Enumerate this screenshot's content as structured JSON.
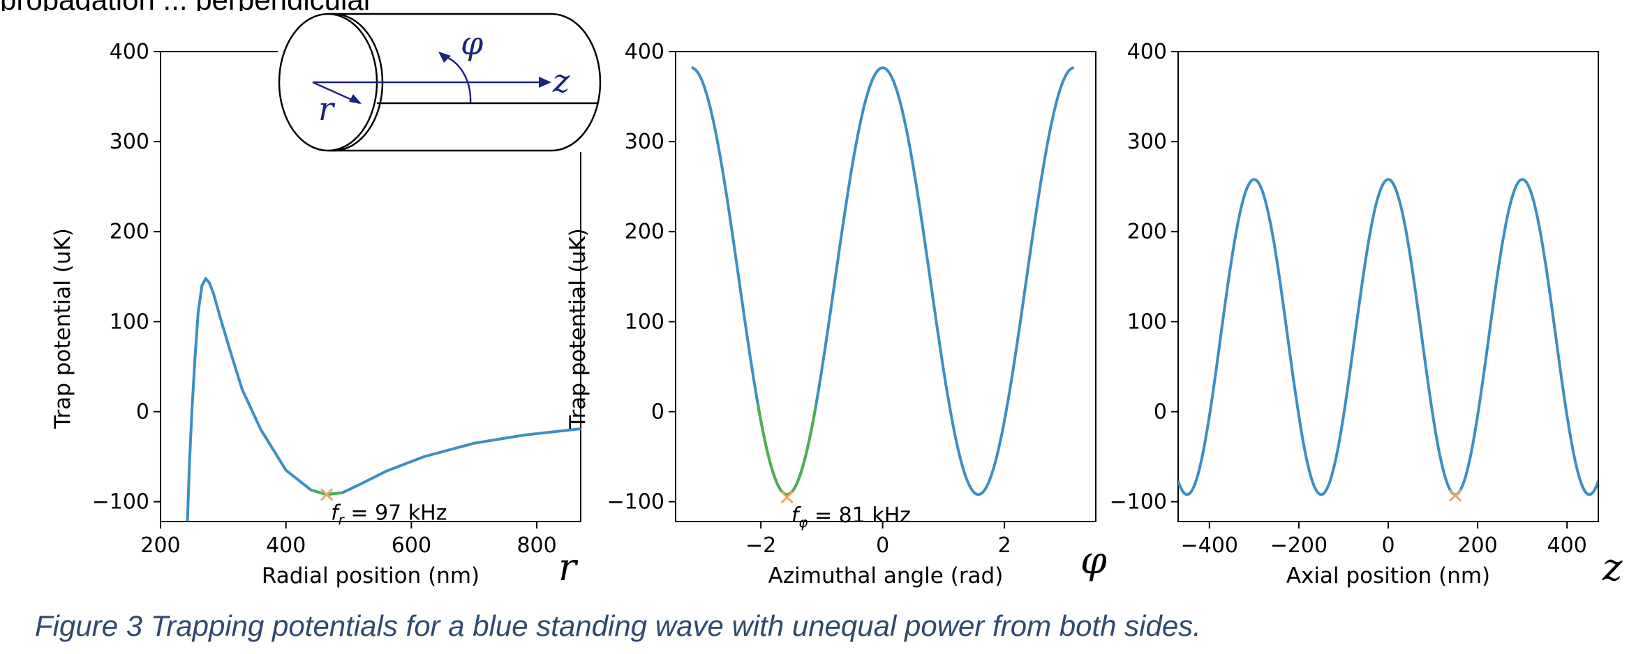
{
  "top_text_fragment": "propagation ... perpendicular",
  "figure": {
    "caption": "Figure 3 Trapping potentials for a blue standing wave with unequal power from both sides.",
    "inset_labels": {
      "phi": "φ",
      "z": "z",
      "r": "r"
    },
    "panel_var_labels": [
      "r",
      "φ",
      "z"
    ]
  },
  "colors": {
    "curve": "#3d8ec4",
    "fit": "#4caf50",
    "marker": "#f5a35c",
    "caption": "#2e4a6e"
  },
  "chart_data": [
    {
      "type": "line",
      "xlabel": "Radial position (nm)",
      "ylabel": "Trap potential (uK)",
      "xlim": [
        200,
        870
      ],
      "ylim": [
        -122,
        400
      ],
      "xticks": [
        200,
        400,
        600,
        800
      ],
      "yticks": [
        -100,
        0,
        100,
        200,
        300,
        400
      ],
      "annotation": "f_r = 97 kHz",
      "annotation_parts": {
        "symbol": "f",
        "sub": "r",
        "rest": " = 97 kHz"
      },
      "series": [
        {
          "x": [
            243,
            246,
            250,
            255,
            260,
            266,
            272,
            278,
            285,
            295,
            310,
            330,
            360,
            400,
            440,
            465,
            490,
            520,
            560,
            620,
            700,
            780,
            870
          ],
          "y": [
            -122,
            -60,
            0,
            60,
            110,
            140,
            148,
            143,
            130,
            105,
            70,
            25,
            -20,
            -65,
            -87,
            -92,
            -90,
            -80,
            -66,
            -50,
            -35,
            -26,
            -19
          ]
        }
      ],
      "fit": {
        "x": [
          440,
          455,
          465,
          475,
          490
        ],
        "y": [
          -87,
          -90,
          -92,
          -91,
          -90
        ]
      },
      "marker": {
        "x": 465,
        "y": -92
      }
    },
    {
      "type": "line",
      "xlabel": "Azimuthal angle (rad)",
      "ylabel": "Trap potential (uK)",
      "xlim": [
        -3.4,
        3.5
      ],
      "ylim": [
        -122,
        400
      ],
      "xticks": [
        -2,
        0,
        2
      ],
      "yticks": [
        -100,
        0,
        100,
        200,
        300,
        400
      ],
      "annotation": "f_φ = 81 kHz",
      "annotation_parts": {
        "symbol": "f",
        "sub": "φ",
        "rest": " = 81 kHz"
      },
      "curve_model": {
        "amplitude": 474,
        "offset": -92,
        "period": 3.1416,
        "x_start": -3.14,
        "x_end": 3.14
      },
      "fit": {
        "x_start": -2.05,
        "x_end": -1.1
      },
      "marker": {
        "x": -1.57,
        "y": -95
      }
    },
    {
      "type": "line",
      "xlabel": "Axial position (nm)",
      "ylabel": "",
      "xlim": [
        -470,
        470
      ],
      "ylim": [
        -122,
        400
      ],
      "xticks": [
        -400,
        -200,
        0,
        200,
        400
      ],
      "yticks": [
        -100,
        0,
        100,
        200,
        300,
        400
      ],
      "curve_model": {
        "amplitude": 350,
        "offset": -92,
        "period": 300,
        "x_start": -470,
        "x_end": 470
      },
      "marker": {
        "x": 150,
        "y": -93
      }
    }
  ]
}
